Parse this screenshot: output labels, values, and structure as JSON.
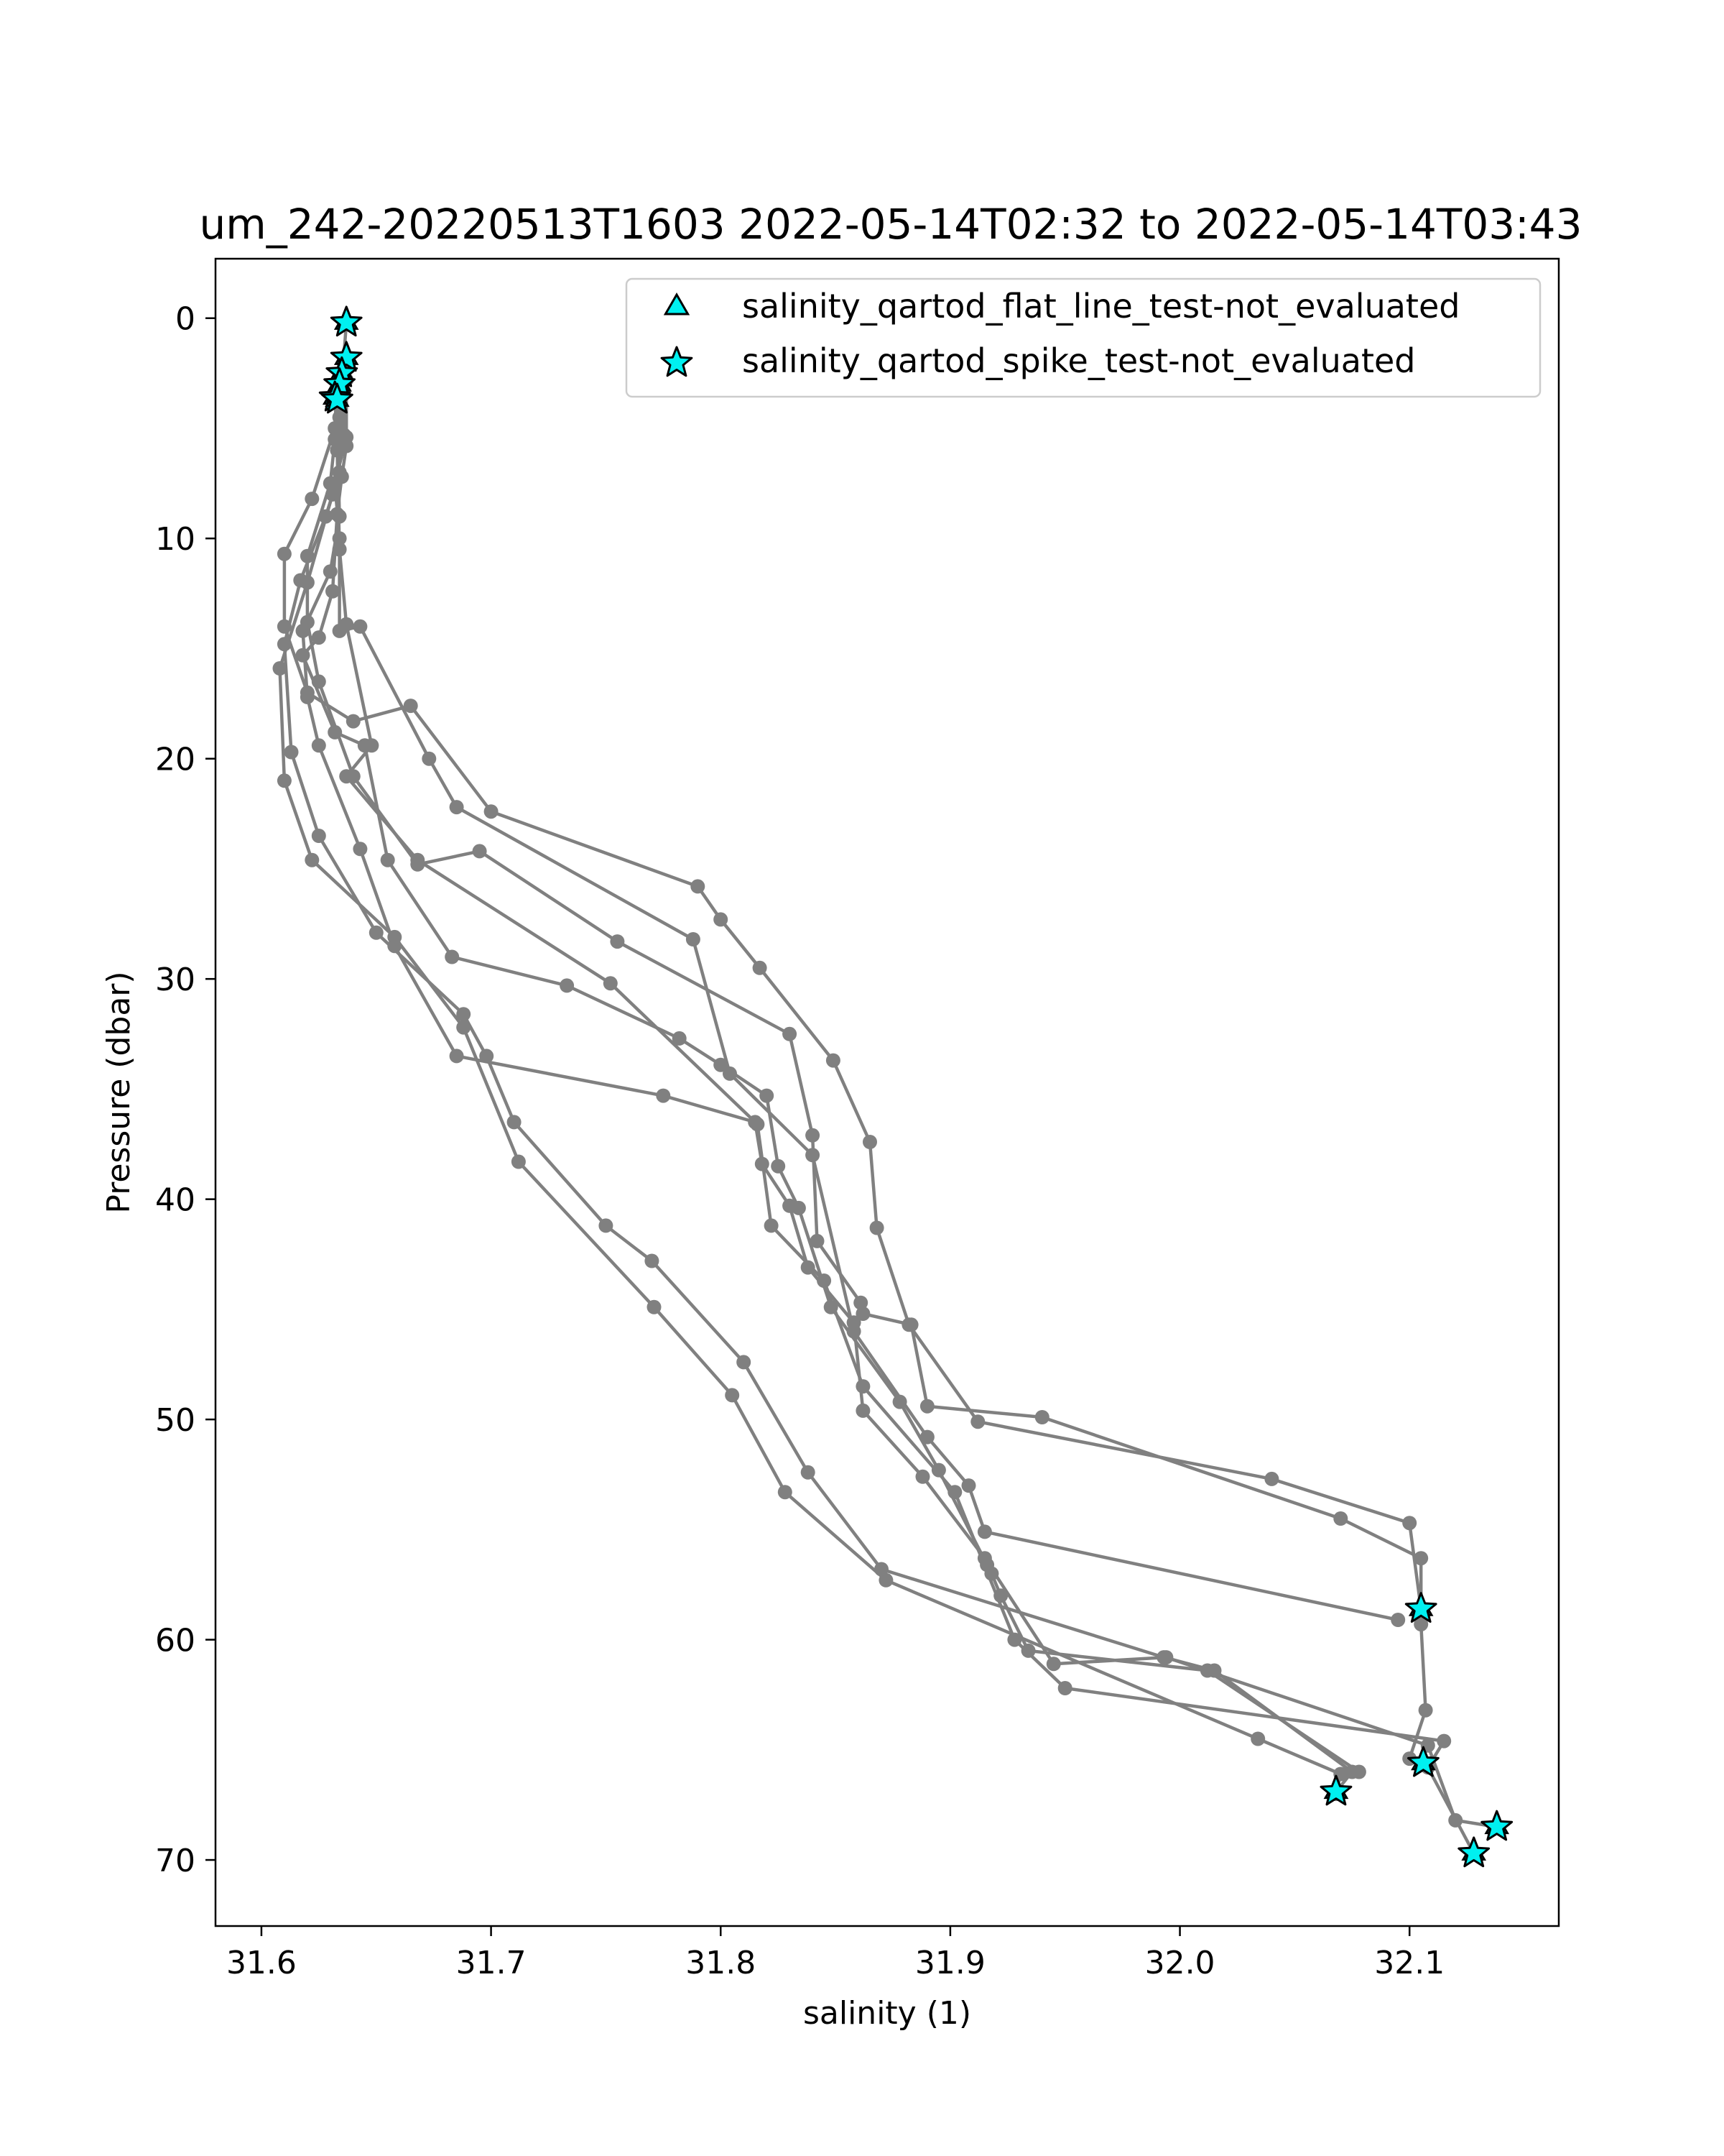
{
  "chart_data": {
    "type": "scatter",
    "title": "um_242-20220513T1603 2022-05-14T02:32 to 2022-05-14T03:43",
    "xlabel": "salinity (1)",
    "ylabel": "Pressure (dbar)",
    "xlim": [
      31.58,
      32.165
    ],
    "ylim": [
      73.0,
      -2.7
    ],
    "y_inverted": true,
    "grid": false,
    "legend_position": "top-right",
    "x_ticks": [
      {
        "value": 31.6,
        "label": "31.6"
      },
      {
        "value": 31.7,
        "label": "31.7"
      },
      {
        "value": 31.8,
        "label": "31.8"
      },
      {
        "value": 31.9,
        "label": "31.9"
      },
      {
        "value": 32.0,
        "label": "32.0"
      },
      {
        "value": 32.1,
        "label": "32.1"
      }
    ],
    "y_ticks": [
      {
        "value": 0,
        "label": "0"
      },
      {
        "value": 10,
        "label": "10"
      },
      {
        "value": 20,
        "label": "20"
      },
      {
        "value": 30,
        "label": "30"
      },
      {
        "value": 40,
        "label": "40"
      },
      {
        "value": 50,
        "label": "50"
      },
      {
        "value": 60,
        "label": "60"
      },
      {
        "value": 70,
        "label": "70"
      }
    ],
    "line_color": "#808080",
    "marker_color": "#00f0f0",
    "marker_edge_color": "#000000",
    "profiles": [
      {
        "points": [
          [
            31.637,
            0.2
          ],
          [
            31.635,
            3.0
          ],
          [
            31.632,
            5.0
          ],
          [
            31.622,
            8.2
          ],
          [
            31.61,
            10.7
          ],
          [
            31.61,
            14.0
          ],
          [
            31.62,
            17.0
          ],
          [
            31.64,
            18.3
          ],
          [
            31.665,
            17.6
          ],
          [
            31.7,
            22.4
          ],
          [
            31.79,
            25.8
          ],
          [
            31.8,
            27.3
          ],
          [
            31.817,
            29.5
          ],
          [
            31.849,
            33.7
          ],
          [
            31.865,
            37.4
          ],
          [
            31.868,
            41.3
          ],
          [
            31.882,
            45.7
          ],
          [
            31.912,
            50.1
          ],
          [
            32.04,
            52.7
          ],
          [
            32.1,
            54.7
          ],
          [
            32.105,
            58.6
          ]
        ]
      },
      {
        "points": [
          [
            31.637,
            1.8
          ],
          [
            31.634,
            4.5
          ],
          [
            31.634,
            7.0
          ],
          [
            31.628,
            9.0
          ],
          [
            31.617,
            11.9
          ],
          [
            31.61,
            14.8
          ],
          [
            31.613,
            19.7
          ],
          [
            31.625,
            23.5
          ],
          [
            31.65,
            27.9
          ],
          [
            31.688,
            31.6
          ],
          [
            31.698,
            33.5
          ],
          [
            31.71,
            36.5
          ],
          [
            31.75,
            41.2
          ],
          [
            31.77,
            42.8
          ],
          [
            31.81,
            47.4
          ],
          [
            31.838,
            52.4
          ],
          [
            31.87,
            56.8
          ],
          [
            31.993,
            60.8
          ],
          [
            32.015,
            61.4
          ],
          [
            32.075,
            66.0
          ],
          [
            32.068,
            66.9
          ]
        ]
      },
      {
        "points": [
          [
            31.635,
            2.5
          ],
          [
            31.636,
            5.3
          ],
          [
            31.631,
            8.0
          ],
          [
            31.62,
            12.0
          ],
          [
            31.608,
            15.9
          ],
          [
            31.61,
            21.0
          ],
          [
            31.622,
            24.6
          ],
          [
            31.658,
            28.1
          ],
          [
            31.688,
            32.2
          ],
          [
            31.712,
            38.3
          ],
          [
            31.771,
            44.9
          ],
          [
            31.805,
            48.9
          ],
          [
            31.828,
            53.3
          ],
          [
            31.872,
            57.3
          ],
          [
            32.034,
            64.5
          ],
          [
            32.07,
            66.1
          ],
          [
            32.068,
            67.0
          ]
        ]
      },
      {
        "points": [
          [
            31.633,
            3.2
          ],
          [
            31.637,
            5.8
          ],
          [
            31.635,
            7.2
          ],
          [
            31.633,
            8.9
          ],
          [
            31.631,
            12.4
          ],
          [
            31.625,
            14.5
          ],
          [
            31.618,
            15.3
          ],
          [
            31.632,
            18.8
          ],
          [
            31.645,
            19.4
          ],
          [
            31.655,
            24.6
          ],
          [
            31.683,
            29.0
          ],
          [
            31.733,
            30.3
          ],
          [
            31.782,
            32.7
          ],
          [
            31.8,
            33.9
          ],
          [
            31.82,
            35.3
          ],
          [
            31.825,
            38.5
          ],
          [
            31.834,
            40.4
          ],
          [
            31.848,
            44.9
          ],
          [
            31.878,
            49.2
          ],
          [
            31.895,
            52.3
          ],
          [
            31.916,
            56.6
          ],
          [
            31.918,
            57.0
          ],
          [
            31.922,
            58.0
          ],
          [
            31.934,
            60.5
          ],
          [
            32.012,
            61.4
          ],
          [
            32.078,
            66.0
          ]
        ]
      },
      {
        "points": [
          [
            31.632,
            3.7
          ],
          [
            31.633,
            5.0
          ],
          [
            31.634,
            9.0
          ],
          [
            31.63,
            11.5
          ],
          [
            31.618,
            14.2
          ],
          [
            31.62,
            17.2
          ],
          [
            31.625,
            19.4
          ],
          [
            31.643,
            24.1
          ],
          [
            31.658,
            28.5
          ],
          [
            31.685,
            33.5
          ],
          [
            31.775,
            35.3
          ],
          [
            31.815,
            36.5
          ],
          [
            31.818,
            38.4
          ],
          [
            31.83,
            40.3
          ],
          [
            31.838,
            43.1
          ],
          [
            31.858,
            45.6
          ],
          [
            31.862,
            49.6
          ],
          [
            31.888,
            52.6
          ],
          [
            31.915,
            56.3
          ],
          [
            31.945,
            61.1
          ],
          [
            31.994,
            60.8
          ],
          [
            32.108,
            64.8
          ],
          [
            32.12,
            68.2
          ],
          [
            32.138,
            68.5
          ]
        ]
      },
      {
        "points": [
          [
            31.633,
            3.0
          ],
          [
            31.632,
            5.5
          ],
          [
            31.63,
            7.5
          ],
          [
            31.62,
            10.8
          ],
          [
            31.62,
            13.8
          ],
          [
            31.625,
            16.5
          ],
          [
            31.64,
            20.8
          ],
          [
            31.668,
            24.8
          ],
          [
            31.695,
            24.2
          ],
          [
            31.755,
            28.3
          ],
          [
            31.83,
            32.5
          ],
          [
            31.84,
            37.1
          ],
          [
            31.842,
            41.9
          ],
          [
            31.861,
            44.7
          ],
          [
            31.862,
            45.2
          ],
          [
            31.883,
            45.7
          ],
          [
            31.89,
            49.4
          ],
          [
            31.94,
            49.9
          ],
          [
            32.07,
            54.5
          ],
          [
            32.105,
            56.3
          ],
          [
            32.105,
            59.3
          ],
          [
            32.107,
            63.2
          ],
          [
            32.1,
            65.4
          ],
          [
            32.106,
            65.6
          ]
        ]
      },
      {
        "points": [
          [
            31.637,
            2.8
          ],
          [
            31.637,
            5.4
          ],
          [
            31.632,
            7.5
          ],
          [
            31.634,
            10.0
          ],
          [
            31.634,
            14.2
          ],
          [
            31.643,
            14.0
          ],
          [
            31.673,
            20.0
          ],
          [
            31.685,
            22.2
          ],
          [
            31.788,
            28.2
          ],
          [
            31.804,
            34.3
          ],
          [
            31.84,
            38.0
          ],
          [
            31.858,
            46.0
          ],
          [
            31.89,
            50.8
          ],
          [
            31.908,
            53.0
          ],
          [
            31.915,
            55.1
          ],
          [
            32.095,
            59.1
          ]
        ]
      },
      {
        "points": [
          [
            31.632,
            3.5
          ],
          [
            31.633,
            6.0
          ],
          [
            31.634,
            10.5
          ],
          [
            31.637,
            13.9
          ],
          [
            31.648,
            19.4
          ],
          [
            31.637,
            20.8
          ],
          [
            31.668,
            24.6
          ],
          [
            31.752,
            30.2
          ],
          [
            31.816,
            36.6
          ],
          [
            31.822,
            41.2
          ],
          [
            31.845,
            43.7
          ],
          [
            31.862,
            48.5
          ],
          [
            31.902,
            53.3
          ],
          [
            31.928,
            60.0
          ],
          [
            31.95,
            62.2
          ],
          [
            32.115,
            64.6
          ],
          [
            32.108,
            65.8
          ],
          [
            32.128,
            69.7
          ]
        ]
      }
    ],
    "flagged_points": [
      [
        31.637,
        0.2
      ],
      [
        31.637,
        1.8
      ],
      [
        31.635,
        2.5
      ],
      [
        31.634,
        3.0
      ],
      [
        31.632,
        3.6
      ],
      [
        31.633,
        3.7
      ],
      [
        32.105,
        58.6
      ],
      [
        32.106,
        65.6
      ],
      [
        32.068,
        66.9
      ],
      [
        32.138,
        68.5
      ],
      [
        32.128,
        69.7
      ]
    ],
    "legend": [
      {
        "marker": "triangle",
        "label": "salinity_qartod_flat_line_test-not_evaluated"
      },
      {
        "marker": "star",
        "label": "salinity_qartod_spike_test-not_evaluated"
      }
    ]
  }
}
